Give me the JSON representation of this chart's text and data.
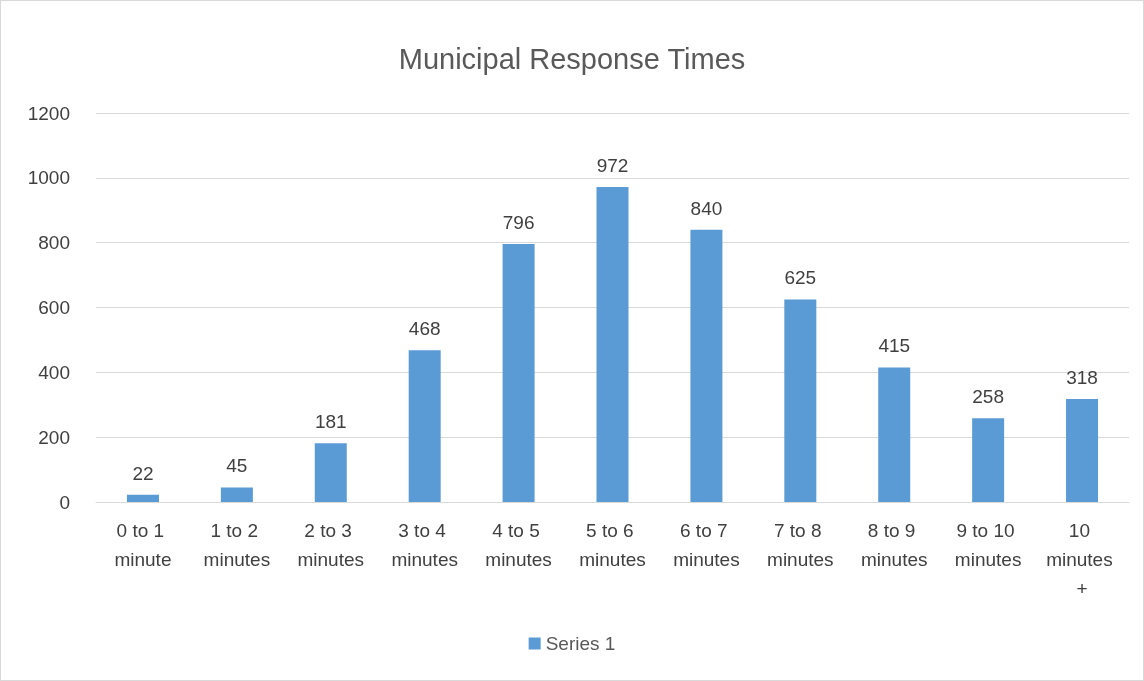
{
  "chart_data": {
    "type": "bar",
    "title": "Municipal Response Times",
    "categories": [
      "0 to 1 minute",
      "1 to 2 minutes",
      "2 to 3 minutes",
      "3 to 4 minutes",
      "4 to 5 minutes",
      "5 to 6 minutes",
      "6 to 7 minutes",
      "7 to 8 minutes",
      "8 to 9 minutes",
      "9 to 10 minutes",
      "10 minutes +"
    ],
    "series": [
      {
        "name": "Series 1",
        "color": "#5b9bd5",
        "values": [
          22,
          45,
          181,
          468,
          796,
          972,
          840,
          625,
          415,
          258,
          318
        ]
      }
    ],
    "ylim": [
      0,
      1200
    ],
    "yticks": [
      0,
      200,
      400,
      600,
      800,
      1000,
      1200
    ],
    "grid": "y",
    "legend": "bottom",
    "data_labels": true
  }
}
